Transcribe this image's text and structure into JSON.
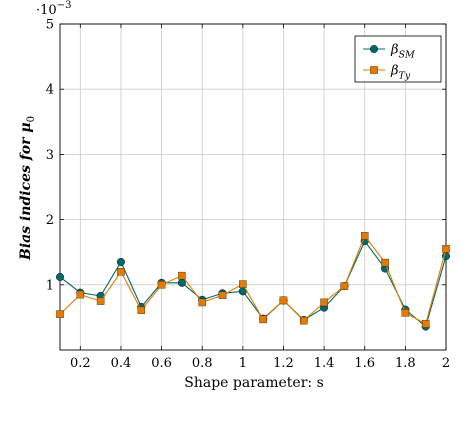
{
  "chart_data": {
    "type": "line",
    "xlabel": "Shape parameter: s",
    "ylabel": "Bias indices for μ",
    "ylabel_subscript": "0",
    "y_exponent_label": "·10",
    "y_exponent_power": "−3",
    "xlim": [
      0.1,
      2.0
    ],
    "ylim": [
      0.0,
      5.0
    ],
    "x_ticks": [
      0.2,
      0.4,
      0.6,
      0.8,
      1.0,
      1.2,
      1.4,
      1.6,
      1.8,
      2.0
    ],
    "x_tick_labels": [
      "0.2",
      "0.4",
      "0.6",
      "0.8",
      "1",
      "1.2",
      "1.4",
      "1.6",
      "1.8",
      "2"
    ],
    "y_ticks": [
      1,
      2,
      3,
      4,
      5
    ],
    "y_tick_labels": [
      "1",
      "2",
      "3",
      "4",
      "5"
    ],
    "grid": true,
    "legend_position": "top-right",
    "x": [
      0.1,
      0.2,
      0.3,
      0.4,
      0.5,
      0.6,
      0.7,
      0.8,
      0.9,
      1.0,
      1.1,
      1.2,
      1.3,
      1.4,
      1.5,
      1.6,
      1.7,
      1.8,
      1.9,
      2.0
    ],
    "series": [
      {
        "name": "β",
        "name_subscript": "SM",
        "color": "#00686b",
        "marker": "circle",
        "values": [
          1.12,
          0.88,
          0.83,
          1.35,
          0.66,
          1.03,
          1.03,
          0.77,
          0.87,
          0.9,
          0.48,
          0.76,
          0.46,
          0.65,
          0.98,
          1.67,
          1.25,
          0.62,
          0.36,
          1.44
        ]
      },
      {
        "name": "β",
        "name_subscript": "Ty",
        "color": "#e37b00",
        "marker": "square",
        "values": [
          0.55,
          0.85,
          0.75,
          1.2,
          0.61,
          1.0,
          1.14,
          0.73,
          0.84,
          1.01,
          0.47,
          0.76,
          0.45,
          0.73,
          0.98,
          1.75,
          1.34,
          0.57,
          0.4,
          1.55
        ]
      }
    ]
  }
}
